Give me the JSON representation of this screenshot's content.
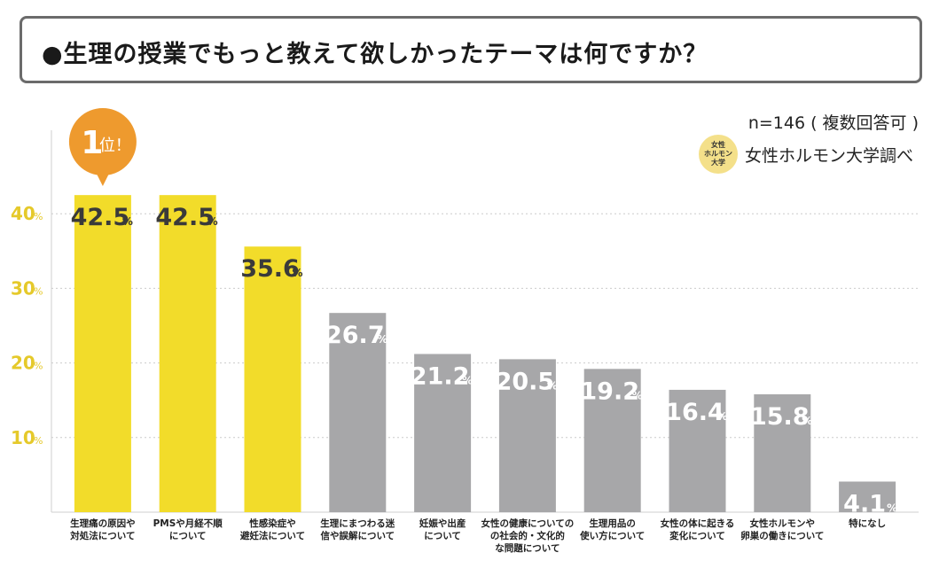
{
  "title": "●生理の授業でもっと教えて欲しかったテーマは何ですか？",
  "sample": "n=146 ( 複数回答可 )",
  "credit": "女性ホルモン大学調べ",
  "seal_lines": [
    "女性",
    "ホルモン",
    "大学"
  ],
  "badge": {
    "rank": "1",
    "suffix": "位！"
  },
  "colors": {
    "highlight": "#f2dc2a",
    "normal": "#a7a7a9",
    "accent_badge": "#ee9a2e",
    "axis_label": "#e5c92a"
  },
  "chart_data": {
    "type": "bar",
    "title": "●生理の授業でもっと教えて欲しかったテーマは何ですか？",
    "unit": "%",
    "ylim": [
      0,
      50
    ],
    "yticks": [
      10,
      20,
      30,
      40
    ],
    "grid": true,
    "categories": [
      [
        "生理痛の原因や",
        "対処法について"
      ],
      [
        "PMSや月経不順",
        "について"
      ],
      [
        "性感染症や",
        "避妊法について"
      ],
      [
        "生理にまつわる迷",
        "信や誤解について"
      ],
      [
        "妊娠や出産",
        "について"
      ],
      [
        "女性の健康についての",
        "の社会的・文化的",
        "な問題について"
      ],
      [
        "生理用品の",
        "使い方について"
      ],
      [
        "女性の体に起きる",
        "変化について"
      ],
      [
        "女性ホルモンや",
        "卵巣の働きについて"
      ],
      [
        "特になし"
      ]
    ],
    "values": [
      42.5,
      42.5,
      35.6,
      26.7,
      21.2,
      20.5,
      19.2,
      16.4,
      15.8,
      4.1
    ],
    "value_labels": [
      "42.5",
      "42.5",
      "35.6",
      "26.7",
      "21.2",
      "20.5",
      "19.2",
      "16.4",
      "15.8",
      "4.1"
    ],
    "highlighted": [
      true,
      true,
      true,
      false,
      false,
      false,
      false,
      false,
      false,
      false
    ]
  }
}
